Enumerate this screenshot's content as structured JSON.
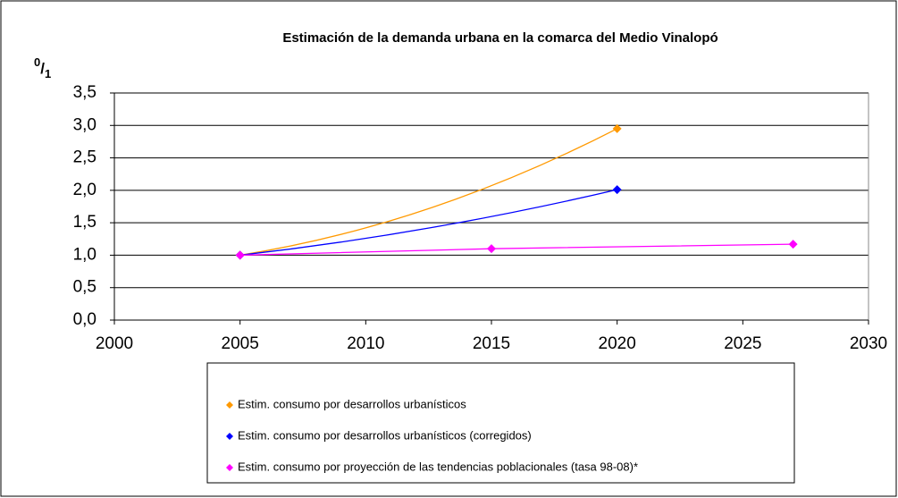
{
  "chart_data": {
    "type": "scatter",
    "title": "Estimación de la demanda urbana en la comarca del Medio Vinalopó",
    "y_label": [
      "0",
      "/",
      "1"
    ],
    "xlim": [
      2000,
      2030
    ],
    "xticks": [
      2000,
      2005,
      2010,
      2015,
      2020,
      2025,
      2030
    ],
    "ylim": [
      0,
      3.5
    ],
    "yticks": [
      {
        "value": 0,
        "label": "0,0"
      },
      {
        "value": 0.5,
        "label": "0,5"
      },
      {
        "value": 1,
        "label": "1,0"
      },
      {
        "value": 1.5,
        "label": "1,5"
      },
      {
        "value": 2,
        "label": "2,0"
      },
      {
        "value": 2.5,
        "label": "2,5"
      },
      {
        "value": 3,
        "label": "3,0"
      },
      {
        "value": 3.5,
        "label": "3,5"
      }
    ],
    "grid": true,
    "legend": "bottom",
    "series": [
      {
        "name": "Estim. consumo por desarrollos urbanísticos",
        "color": "#ff9900",
        "x": [
          2005,
          2020
        ],
        "values": [
          1.0,
          2.95
        ]
      },
      {
        "name": "Estim. consumo por desarrollos urbanísticos (corregidos)",
        "color": "#0000ff",
        "x": [
          2005,
          2020
        ],
        "values": [
          1.0,
          2.01
        ]
      },
      {
        "name": "Estim. consumo por proyección de las tendencias poblacionales (tasa 98-08)*",
        "color": "#ff00ff",
        "x": [
          2005,
          2015,
          2027
        ],
        "values": [
          1.0,
          1.1,
          1.17
        ]
      }
    ]
  }
}
